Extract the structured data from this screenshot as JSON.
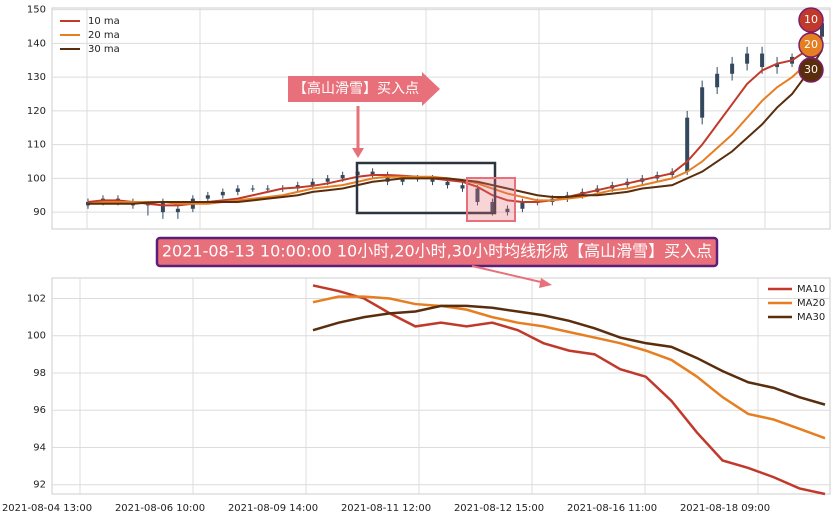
{
  "chart_data": [
    {
      "type": "candlestick",
      "ylim": [
        85,
        150.5
      ],
      "yticks": [
        90,
        100,
        110,
        120,
        130,
        140,
        150
      ],
      "grid": true,
      "candle_color": "#34495e",
      "legend": "upper left",
      "open": [
        92,
        93,
        94,
        93,
        92,
        93,
        90,
        91,
        94,
        95,
        96,
        97,
        97,
        97,
        97,
        98,
        99,
        100,
        101,
        102,
        101,
        99,
        100,
        100,
        99,
        98,
        97,
        93,
        90,
        91,
        93,
        93,
        94,
        95,
        96,
        97,
        98,
        99,
        100,
        101,
        102,
        118,
        127,
        131,
        134,
        137,
        133,
        134,
        136,
        142
      ],
      "high": [
        94,
        95,
        95,
        94,
        93,
        94,
        92,
        95,
        96,
        97,
        98,
        98,
        98,
        98,
        99,
        100,
        101,
        102,
        103,
        103,
        102,
        101,
        101,
        101,
        100,
        99,
        98,
        94,
        92,
        94,
        94,
        95,
        96,
        97,
        98,
        99,
        100,
        101,
        102,
        103,
        120,
        129,
        133,
        136,
        139,
        139,
        136,
        137,
        143,
        147
      ],
      "low": [
        91,
        92,
        92,
        91,
        89,
        88,
        88,
        90,
        93,
        94,
        95,
        96,
        96,
        96,
        96,
        97,
        98,
        99,
        100,
        100,
        98,
        98,
        99,
        98,
        97,
        96,
        92,
        89,
        89,
        90,
        92,
        92,
        93,
        94,
        95,
        96,
        97,
        98,
        99,
        100,
        101,
        116,
        125,
        129,
        132,
        131,
        131,
        133,
        135,
        141
      ],
      "close": [
        93,
        94,
        93,
        92,
        93,
        90,
        91,
        94,
        95,
        96,
        97,
        97,
        97,
        97,
        98,
        99,
        100,
        101,
        102,
        101,
        99,
        100,
        100,
        99,
        98,
        97,
        93,
        90,
        91,
        93,
        93,
        94,
        95,
        96,
        97,
        98,
        99,
        100,
        101,
        102,
        118,
        127,
        131,
        134,
        137,
        133,
        134,
        136,
        142,
        146
      ],
      "series": [
        {
          "name": "10 ma",
          "color": "#c0392b",
          "values": [
            93,
            93.5,
            93.5,
            93,
            92.5,
            92,
            92,
            92.5,
            93,
            93.5,
            94,
            95,
            96,
            97,
            97.3,
            97.8,
            98.5,
            99.5,
            100.5,
            101,
            101,
            100.8,
            100.5,
            100,
            99.5,
            99,
            97.5,
            95,
            93.5,
            93,
            93,
            93.5,
            94.5,
            95.5,
            96.5,
            97.5,
            98.5,
            99.5,
            100.5,
            101.5,
            105,
            110,
            116,
            122,
            128,
            132,
            134,
            135,
            138,
            142
          ]
        },
        {
          "name": "20 ma",
          "color": "#e67e22",
          "values": [
            92.5,
            93,
            93,
            93,
            93,
            93,
            92.5,
            92.5,
            92.5,
            93,
            93.5,
            94,
            94.5,
            95,
            96,
            97,
            97.5,
            98,
            99,
            100,
            100.5,
            100.5,
            100.5,
            100.5,
            100,
            99.5,
            98.5,
            97,
            95.5,
            94.5,
            93.5,
            93.5,
            94,
            94.5,
            95.5,
            96.5,
            97,
            98,
            99,
            100,
            102,
            105,
            109,
            113,
            118,
            123,
            127,
            130,
            134,
            141
          ]
        },
        {
          "name": "30 ma",
          "color": "#5a2d0c",
          "values": [
            92.5,
            92.5,
            92.5,
            92.5,
            92.8,
            93,
            93,
            93,
            93,
            93,
            93,
            93.5,
            94,
            94.5,
            95,
            96,
            96.5,
            97,
            98,
            99,
            99.5,
            100,
            100,
            100,
            100,
            99.5,
            99,
            98,
            97,
            96,
            95,
            94.5,
            94.5,
            95,
            95,
            95.5,
            96,
            97,
            97.5,
            98,
            100,
            102,
            105,
            108,
            112,
            116,
            121,
            125,
            131,
            138
          ]
        }
      ],
      "annotation": "【高山滑雪】买入点",
      "badges": [
        "10",
        "20",
        "30"
      ]
    },
    {
      "type": "line",
      "title": "2021-08-13 10:00:00 10小时,20小时,30小时均线形成【高山滑雪】买入点",
      "ylim": [
        91.5,
        103.1
      ],
      "yticks": [
        92,
        94,
        96,
        98,
        100,
        102
      ],
      "grid": true,
      "legend": "upper right",
      "xticks": [
        "2021-08-04 13:00",
        "2021-08-06 10:00",
        "2021-08-09 14:00",
        "2021-08-11 12:00",
        "2021-08-12 15:00",
        "2021-08-16 11:00",
        "2021-08-18 09:00"
      ],
      "series": [
        {
          "name": "MA10",
          "color": "#c0392b",
          "values": [
            102.7,
            102.4,
            102,
            101.2,
            100.5,
            100.7,
            100.5,
            100.7,
            100.3,
            99.6,
            99.2,
            99,
            98.2,
            97.8,
            96.5,
            94.8,
            93.3,
            92.9,
            92.4,
            91.8,
            91.5
          ]
        },
        {
          "name": "MA20",
          "color": "#e67e22",
          "values": [
            101.8,
            102.1,
            102.1,
            102,
            101.7,
            101.6,
            101.4,
            101,
            100.7,
            100.5,
            100.2,
            99.9,
            99.6,
            99.2,
            98.7,
            97.8,
            96.7,
            95.8,
            95.5,
            95,
            94.5
          ]
        },
        {
          "name": "MA30",
          "color": "#5a2d0c",
          "values": [
            100.3,
            100.7,
            101,
            101.2,
            101.3,
            101.6,
            101.6,
            101.5,
            101.3,
            101.1,
            100.8,
            100.4,
            99.9,
            99.6,
            99.4,
            98.8,
            98.1,
            97.5,
            97.2,
            96.7,
            96.3
          ]
        }
      ]
    }
  ]
}
